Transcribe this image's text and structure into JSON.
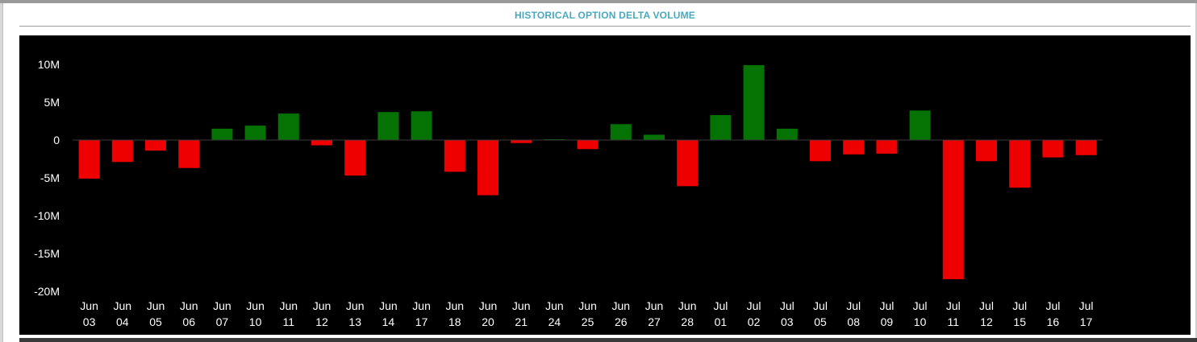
{
  "chart_data": {
    "type": "bar",
    "title": "HISTORICAL OPTION DELTA VOLUME",
    "xlabel": "",
    "ylabel": "",
    "ylim": [
      -20000000,
      10000000
    ],
    "yticks": [
      {
        "value": 10000000,
        "label": "10M"
      },
      {
        "value": 5000000,
        "label": "5M"
      },
      {
        "value": 0,
        "label": "0"
      },
      {
        "value": -5000000,
        "label": "-5M"
      },
      {
        "value": -10000000,
        "label": "-10M"
      },
      {
        "value": -15000000,
        "label": "-15M"
      },
      {
        "value": -20000000,
        "label": "-20M"
      }
    ],
    "categories": [
      {
        "month": "Jun",
        "day": "03"
      },
      {
        "month": "Jun",
        "day": "04"
      },
      {
        "month": "Jun",
        "day": "05"
      },
      {
        "month": "Jun",
        "day": "06"
      },
      {
        "month": "Jun",
        "day": "07"
      },
      {
        "month": "Jun",
        "day": "10"
      },
      {
        "month": "Jun",
        "day": "11"
      },
      {
        "month": "Jun",
        "day": "12"
      },
      {
        "month": "Jun",
        "day": "13"
      },
      {
        "month": "Jun",
        "day": "14"
      },
      {
        "month": "Jun",
        "day": "17"
      },
      {
        "month": "Jun",
        "day": "18"
      },
      {
        "month": "Jun",
        "day": "20"
      },
      {
        "month": "Jun",
        "day": "21"
      },
      {
        "month": "Jun",
        "day": "24"
      },
      {
        "month": "Jun",
        "day": "25"
      },
      {
        "month": "Jun",
        "day": "26"
      },
      {
        "month": "Jun",
        "day": "27"
      },
      {
        "month": "Jun",
        "day": "28"
      },
      {
        "month": "Jul",
        "day": "01"
      },
      {
        "month": "Jul",
        "day": "02"
      },
      {
        "month": "Jul",
        "day": "03"
      },
      {
        "month": "Jul",
        "day": "05"
      },
      {
        "month": "Jul",
        "day": "08"
      },
      {
        "month": "Jul",
        "day": "09"
      },
      {
        "month": "Jul",
        "day": "10"
      },
      {
        "month": "Jul",
        "day": "11"
      },
      {
        "month": "Jul",
        "day": "12"
      },
      {
        "month": "Jul",
        "day": "15"
      },
      {
        "month": "Jul",
        "day": "16"
      },
      {
        "month": "Jul",
        "day": "17"
      }
    ],
    "values": [
      -5100000,
      -2900000,
      -1400000,
      -3700000,
      1500000,
      1900000,
      3500000,
      -700000,
      -4700000,
      3700000,
      3800000,
      -4200000,
      -7300000,
      -400000,
      100000,
      -1200000,
      2100000,
      700000,
      -6100000,
      3300000,
      9900000,
      1500000,
      -2800000,
      -1900000,
      -1800000,
      3900000,
      -18400000,
      -2800000,
      -6300000,
      -2300000,
      -2000000
    ],
    "colors": {
      "positive": "#047304",
      "negative": "#ee0000",
      "background": "#000000",
      "baseline": "#3a3a3a",
      "text": "#ffffff",
      "title": "#4aa8bd"
    },
    "grid": false,
    "legend": "none"
  }
}
